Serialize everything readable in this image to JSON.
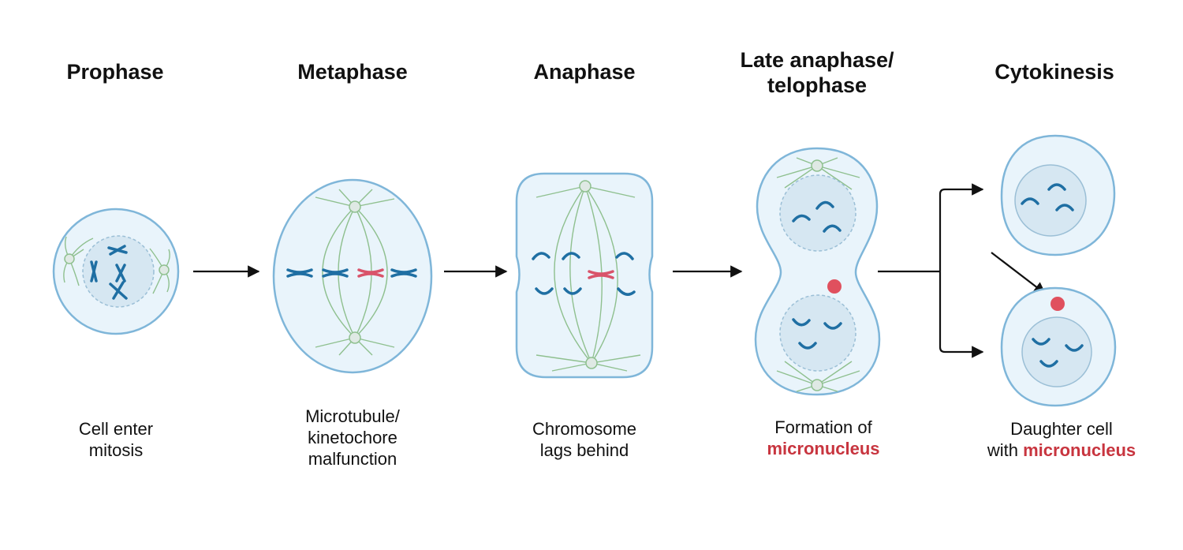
{
  "stages": [
    {
      "title": "Prophase",
      "caption_line1": "Cell enter",
      "caption_line2": "mitosis"
    },
    {
      "title": "Metaphase",
      "caption_line1": "Microtubule/",
      "caption_line2": "kinetochore",
      "caption_line3": "malfunction"
    },
    {
      "title": "Anaphase",
      "caption_line1": "Chromosome",
      "caption_line2": "lags behind"
    },
    {
      "title_line1": "Late anaphase/",
      "title_line2": "telophase",
      "caption_line1": "Formation of",
      "caption_highlight": "micronucleus"
    },
    {
      "title": "Cytokinesis",
      "caption_line1": "Daughter cell",
      "caption_line2_prefix": "with",
      "caption_highlight": "micronucleus"
    }
  ],
  "colors": {
    "membrane": "#7fb6d9",
    "cytoplasm": "#e9f4fb",
    "nucleus": "#d6e7f2",
    "spindle": "#8fc08f",
    "chromosome": "#1f6fa3",
    "lagging_chromosome": "#d9536a",
    "micronucleus": "#e0505e",
    "highlight_text": "#c8353f",
    "arrow": "#111111"
  }
}
